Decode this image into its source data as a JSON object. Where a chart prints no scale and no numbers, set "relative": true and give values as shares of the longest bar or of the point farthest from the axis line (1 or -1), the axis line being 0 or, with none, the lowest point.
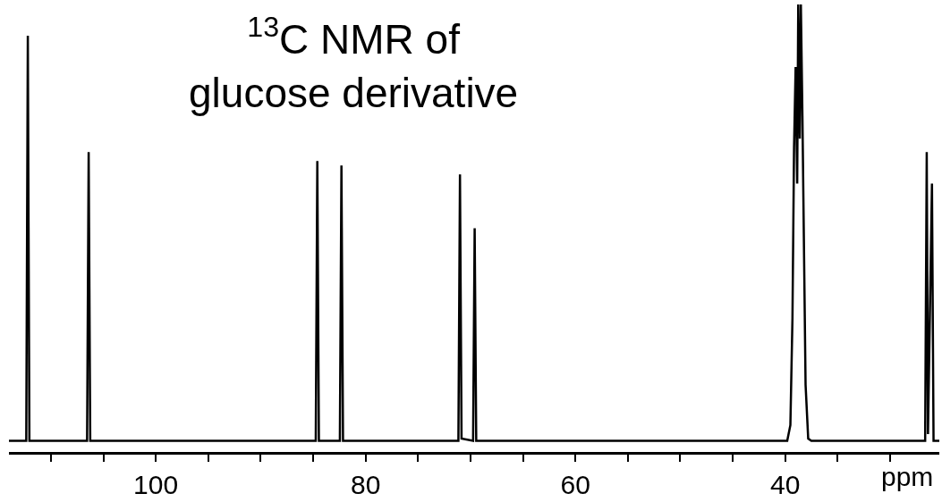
{
  "chart_data": {
    "type": "line",
    "title": "$^{13}$C NMR of glucose derivative",
    "xlabel": "ppm",
    "relative": true,
    "color": "#000000",
    "marker": "none",
    "line_style": "solid",
    "legend": false,
    "xlim": [
      114,
      25.3
    ],
    "xticks": [
      {
        "value": 110,
        "label": null
      },
      {
        "value": 105,
        "label": null
      },
      100,
      {
        "value": 95,
        "label": null
      },
      {
        "value": 90,
        "label": null
      },
      {
        "value": 85,
        "label": null
      },
      80,
      {
        "value": 75,
        "label": null
      },
      {
        "value": 70,
        "label": null
      },
      {
        "value": 65,
        "label": null
      },
      60,
      {
        "value": 55,
        "label": null
      },
      {
        "value": 50,
        "label": null
      },
      {
        "value": 45,
        "label": null
      },
      40,
      {
        "value": 35,
        "label": null
      },
      {
        "value": 30,
        "label": null
      }
    ],
    "x": [
      114,
      112.35,
      112.2,
      112.05,
      106.55,
      106.4,
      106.25,
      84.75,
      84.6,
      84.45,
      82.45,
      82.3,
      82.15,
      71.15,
      71.0,
      70.85,
      69.75,
      69.6,
      69.45,
      39.8,
      39.5,
      39.3,
      39.15,
      39.0,
      38.85,
      38.75,
      38.6,
      38.5,
      38.35,
      38.2,
      38.05,
      37.8,
      37.5,
      26.65,
      26.5,
      26.38,
      26.0,
      25.85,
      25.3
    ],
    "values": [
      0.025,
      0.025,
      0.93,
      0.025,
      0.025,
      0.67,
      0.025,
      0.025,
      0.65,
      0.025,
      0.025,
      0.64,
      0.025,
      0.025,
      0.62,
      0.03,
      0.025,
      0.5,
      0.025,
      0.025,
      0.06,
      0.3,
      0.68,
      0.86,
      0.6,
      1.0,
      0.7,
      1.0,
      0.75,
      0.45,
      0.15,
      0.03,
      0.025,
      0.025,
      0.67,
      0.04,
      0.6,
      0.025,
      0.025
    ]
  }
}
